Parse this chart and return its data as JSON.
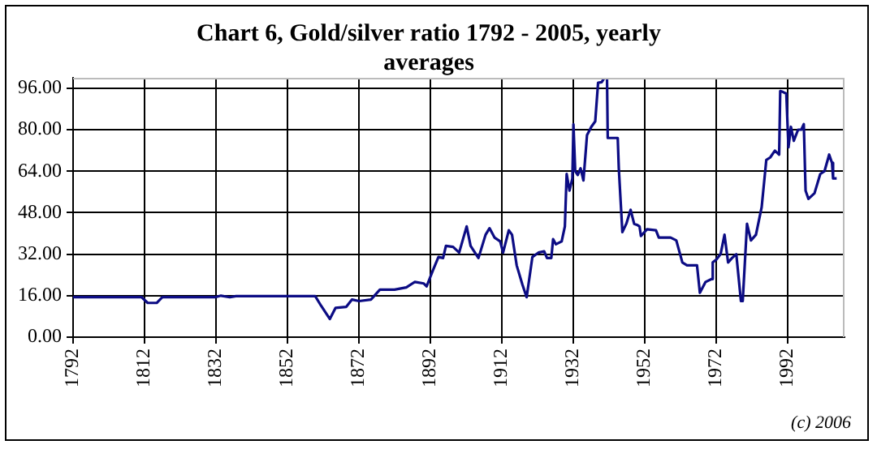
{
  "chart_data": {
    "type": "line",
    "title": "Chart 6, Gold/silver ratio 1792 - 2005, yearly averages",
    "x": [
      1792,
      1811.2,
      1812.9,
      1815.4,
      1817,
      1831.8,
      1833.4,
      1835.9,
      1837.6,
      1859.8,
      1861.4,
      1863.9,
      1865.5,
      1868.5,
      1870.1,
      1872.1,
      1875.4,
      1877.9,
      1882,
      1885.3,
      1887.7,
      1890.2,
      1891,
      1892.7,
      1894.3,
      1895.6,
      1896.4,
      1898.4,
      1900.1,
      1902.2,
      1903.3,
      1905.5,
      1907.5,
      1908.6,
      1910,
      1911.6,
      1912.4,
      1914,
      1914.9,
      1916.2,
      1917.8,
      1919,
      1920.6,
      1922.3,
      1923.9,
      1924.7,
      1925.9,
      1926.4,
      1927.2,
      1928.8,
      1929.7,
      1930.2,
      1931,
      1931.8,
      1932.1,
      1932.6,
      1933.3,
      1934.1,
      1934.9,
      1935.9,
      1937.1,
      1938.2,
      1939,
      1940,
      1940.7,
      1941.5,
      1941.7,
      1944.5,
      1944.8,
      1945.8,
      1946.9,
      1948.1,
      1949.1,
      1949.9,
      1950.6,
      1951,
      1952.7,
      1955.2,
      1956,
      1959.3,
      1960.9,
      1962.6,
      1963.9,
      1966.7,
      1967.5,
      1969.1,
      1970.8,
      1971.1,
      1972.1,
      1973.3,
      1974.4,
      1975.4,
      1976.5,
      1977.7,
      1979,
      1979.5,
      1980.7,
      1981.8,
      1983.2,
      1984.8,
      1986.1,
      1987.2,
      1988.5,
      1989.7,
      1990,
      1990.8,
      1991.7,
      1992.3,
      1993,
      1993.8,
      1995,
      1995.9,
      1996.6,
      1997.1,
      1997.9,
      1999.6,
      2001.2,
      2002.4,
      2003.7,
      2004.5,
      2004.8,
      2005.8
    ],
    "series": [
      {
        "color": "#0c0c84",
        "values": [
          15.4,
          15.4,
          13.2,
          13.2,
          15.4,
          15.4,
          16.0,
          15.4,
          15.8,
          15.8,
          12.2,
          7.0,
          11.3,
          11.7,
          14.5,
          13.9,
          14.5,
          18.3,
          18.3,
          19.2,
          21.3,
          20.7,
          19.6,
          25.6,
          30.9,
          30.5,
          35.2,
          34.8,
          32.6,
          42.7,
          35.2,
          30.5,
          39.5,
          42.0,
          38.4,
          36.9,
          32.6,
          41.2,
          39.5,
          27.7,
          20.3,
          15.4,
          30.9,
          32.6,
          33.1,
          30.5,
          30.5,
          37.8,
          35.8,
          36.9,
          42.7,
          62.9,
          56.5,
          61.2,
          82.1,
          64.0,
          62.5,
          65.1,
          60.4,
          77.9,
          81.1,
          83.2,
          98.1,
          98.3,
          99.8,
          100,
          76.8,
          76.8,
          65.1,
          40.5,
          43.7,
          49.1,
          43.7,
          43.3,
          42.7,
          39.0,
          41.6,
          41.2,
          38.4,
          38.4,
          37.3,
          28.8,
          27.7,
          27.7,
          17.1,
          21.3,
          22.4,
          28.8,
          29.9,
          32.0,
          39.5,
          28.8,
          30.5,
          32.0,
          13.9,
          13.9,
          43.7,
          37.3,
          39.5,
          50.1,
          68.3,
          69.3,
          71.9,
          70.4,
          94.9,
          94.5,
          93.9,
          73.2,
          81.1,
          75.7,
          80.0,
          80.0,
          82.1,
          56.5,
          53.3,
          55.5,
          62.9,
          64.0,
          70.4,
          67.2,
          61.2,
          61.2
        ]
      }
    ],
    "xlim": [
      1792,
      2008
    ],
    "xticks": [
      1792,
      1812,
      1832,
      1852,
      1872,
      1892,
      1912,
      1932,
      1952,
      1972,
      1992
    ],
    "ylim": [
      0,
      100
    ],
    "yticks": [
      {
        "value": 0,
        "label": "0.00"
      },
      {
        "value": 16,
        "label": "16.00"
      },
      {
        "value": 32,
        "label": "32.00"
      },
      {
        "value": 48,
        "label": "48.00"
      },
      {
        "value": 64,
        "label": "64.00"
      },
      {
        "value": 80,
        "label": "80.00"
      },
      {
        "value": 96,
        "label": "96.00"
      }
    ],
    "grid": true,
    "legend": false,
    "marker": "none",
    "line_style": "solid",
    "annotations": [
      "(c) 2006"
    ]
  }
}
